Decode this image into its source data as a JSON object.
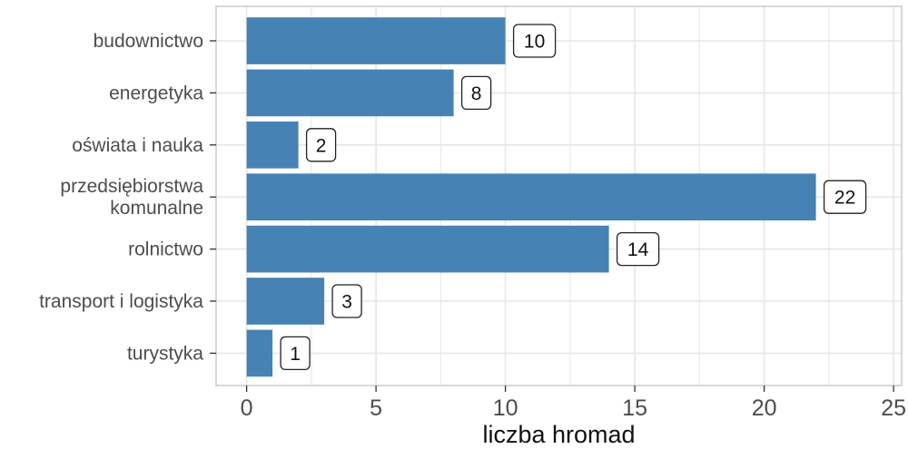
{
  "chart_data": {
    "type": "bar",
    "orientation": "horizontal",
    "categories": [
      "budownictwo",
      "energetyka",
      "oświata i nauka",
      "przedsiębiorstwa\nkomunalne",
      "rolnictwo",
      "transport i logistyka",
      "turystyka"
    ],
    "values": [
      10,
      8,
      2,
      22,
      14,
      3,
      1
    ],
    "data_labels": [
      "10",
      "8",
      "2",
      "22",
      "14",
      "3",
      "1"
    ],
    "xlabel": "liczba hromad",
    "xlim": [
      0,
      25
    ],
    "xticks": [
      0,
      5,
      10,
      15,
      20,
      25
    ],
    "xtick_labels": [
      "0",
      "5",
      "10",
      "15",
      "20",
      "25"
    ],
    "grid": true,
    "bar_color": "#4682b4",
    "panel_border_color": "#cccccc",
    "grid_color": "#e6e6e6"
  }
}
